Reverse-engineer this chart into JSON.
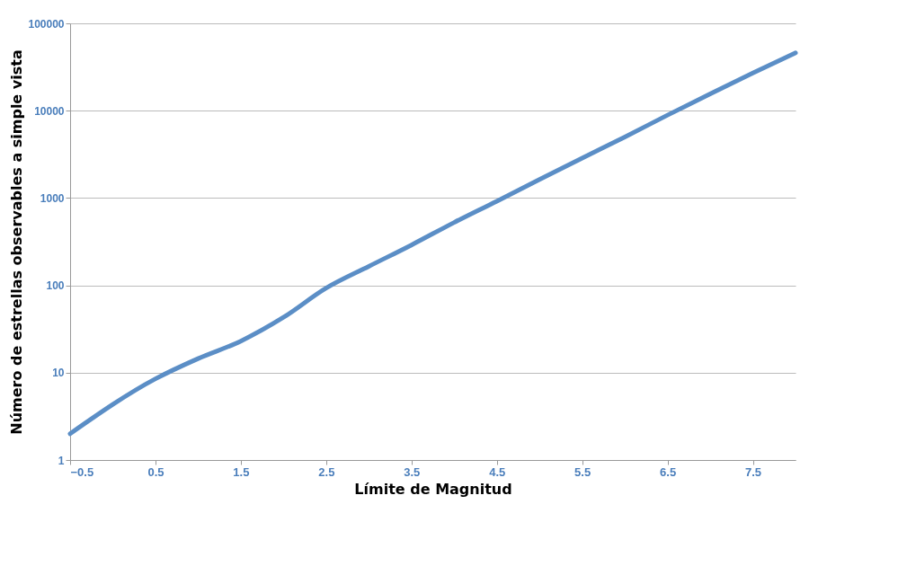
{
  "chart_data": {
    "type": "line",
    "xlabel": "Límite de Magnitud",
    "ylabel": "Número de estrellas observables a simple vista",
    "x": [
      -0.5,
      0.5,
      1.0,
      1.5,
      2.0,
      2.5,
      3.0,
      3.5,
      4.0,
      4.5,
      5.0,
      5.5,
      6.0,
      6.5,
      7.0,
      7.5,
      8.0
    ],
    "series": [
      {
        "color": "#5b8ec6",
        "values": [
          2,
          8.5,
          14.5,
          23,
          43,
          93,
          165,
          290,
          525,
          920,
          1630,
          2870,
          5000,
          8900,
          15600,
          27000,
          46000
        ]
      }
    ],
    "xlim": [
      -0.5,
      8
    ],
    "xticks": [
      -0.5,
      0.5,
      1.5,
      2.5,
      3.5,
      4.5,
      5.5,
      6.5,
      7.5
    ],
    "ylim": [
      1,
      100000
    ],
    "yticks": [
      1,
      10,
      100,
      1000,
      10000,
      100000
    ],
    "log": "y",
    "grid": "y",
    "marker": "none",
    "line_style": "solid"
  }
}
